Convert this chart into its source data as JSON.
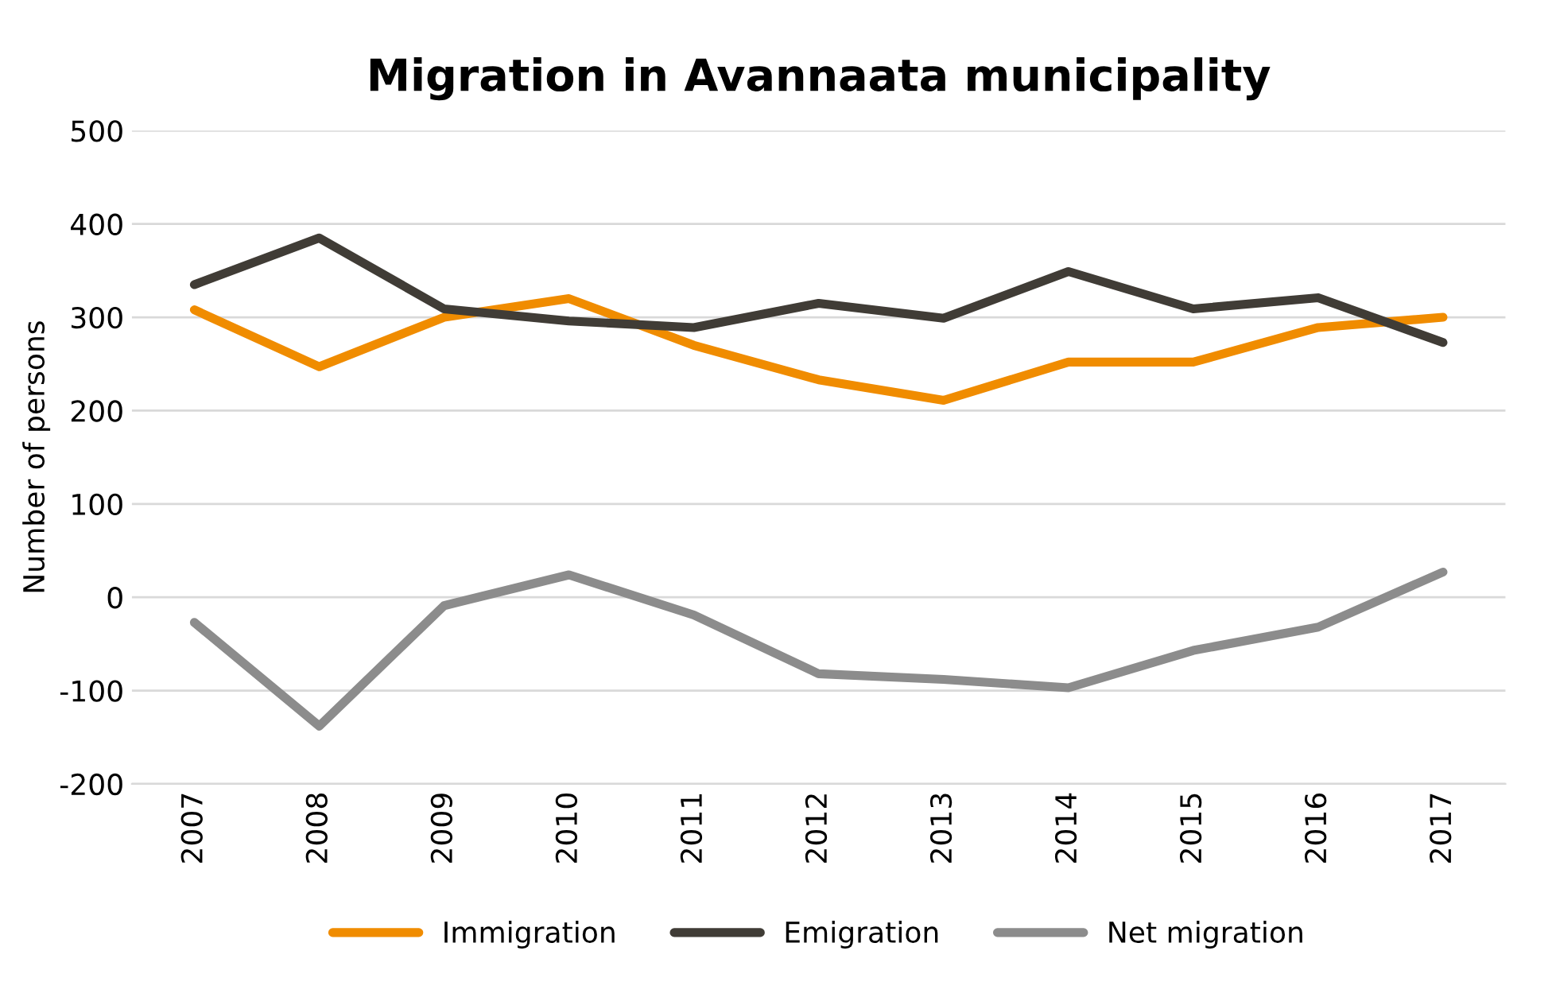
{
  "chart_data": {
    "type": "line",
    "title": "Migration in Avannaata municipality",
    "ylabel": "Number of persons",
    "categories": [
      "2007",
      "2008",
      "2009",
      "2010",
      "2011",
      "2012",
      "2013",
      "2014",
      "2015",
      "2016",
      "2017"
    ],
    "series": [
      {
        "name": "Immigration",
        "color": "#f08c00",
        "values": [
          308,
          247,
          300,
          320,
          270,
          233,
          211,
          252,
          252,
          289,
          300
        ]
      },
      {
        "name": "Emigration",
        "color": "#403c36",
        "values": [
          335,
          385,
          309,
          296,
          289,
          315,
          299,
          349,
          309,
          321,
          273
        ]
      },
      {
        "name": "Net migration",
        "color": "#8c8c8c",
        "values": [
          -27,
          -138,
          -9,
          24,
          -19,
          -82,
          -88,
          -97,
          -57,
          -32,
          27
        ]
      }
    ],
    "ylim": [
      -200,
      500
    ],
    "yticks": [
      -200,
      -100,
      0,
      100,
      200,
      300,
      400,
      500
    ],
    "grid": "y",
    "legend": "bottom",
    "marker": "none",
    "line_style": "solid"
  }
}
